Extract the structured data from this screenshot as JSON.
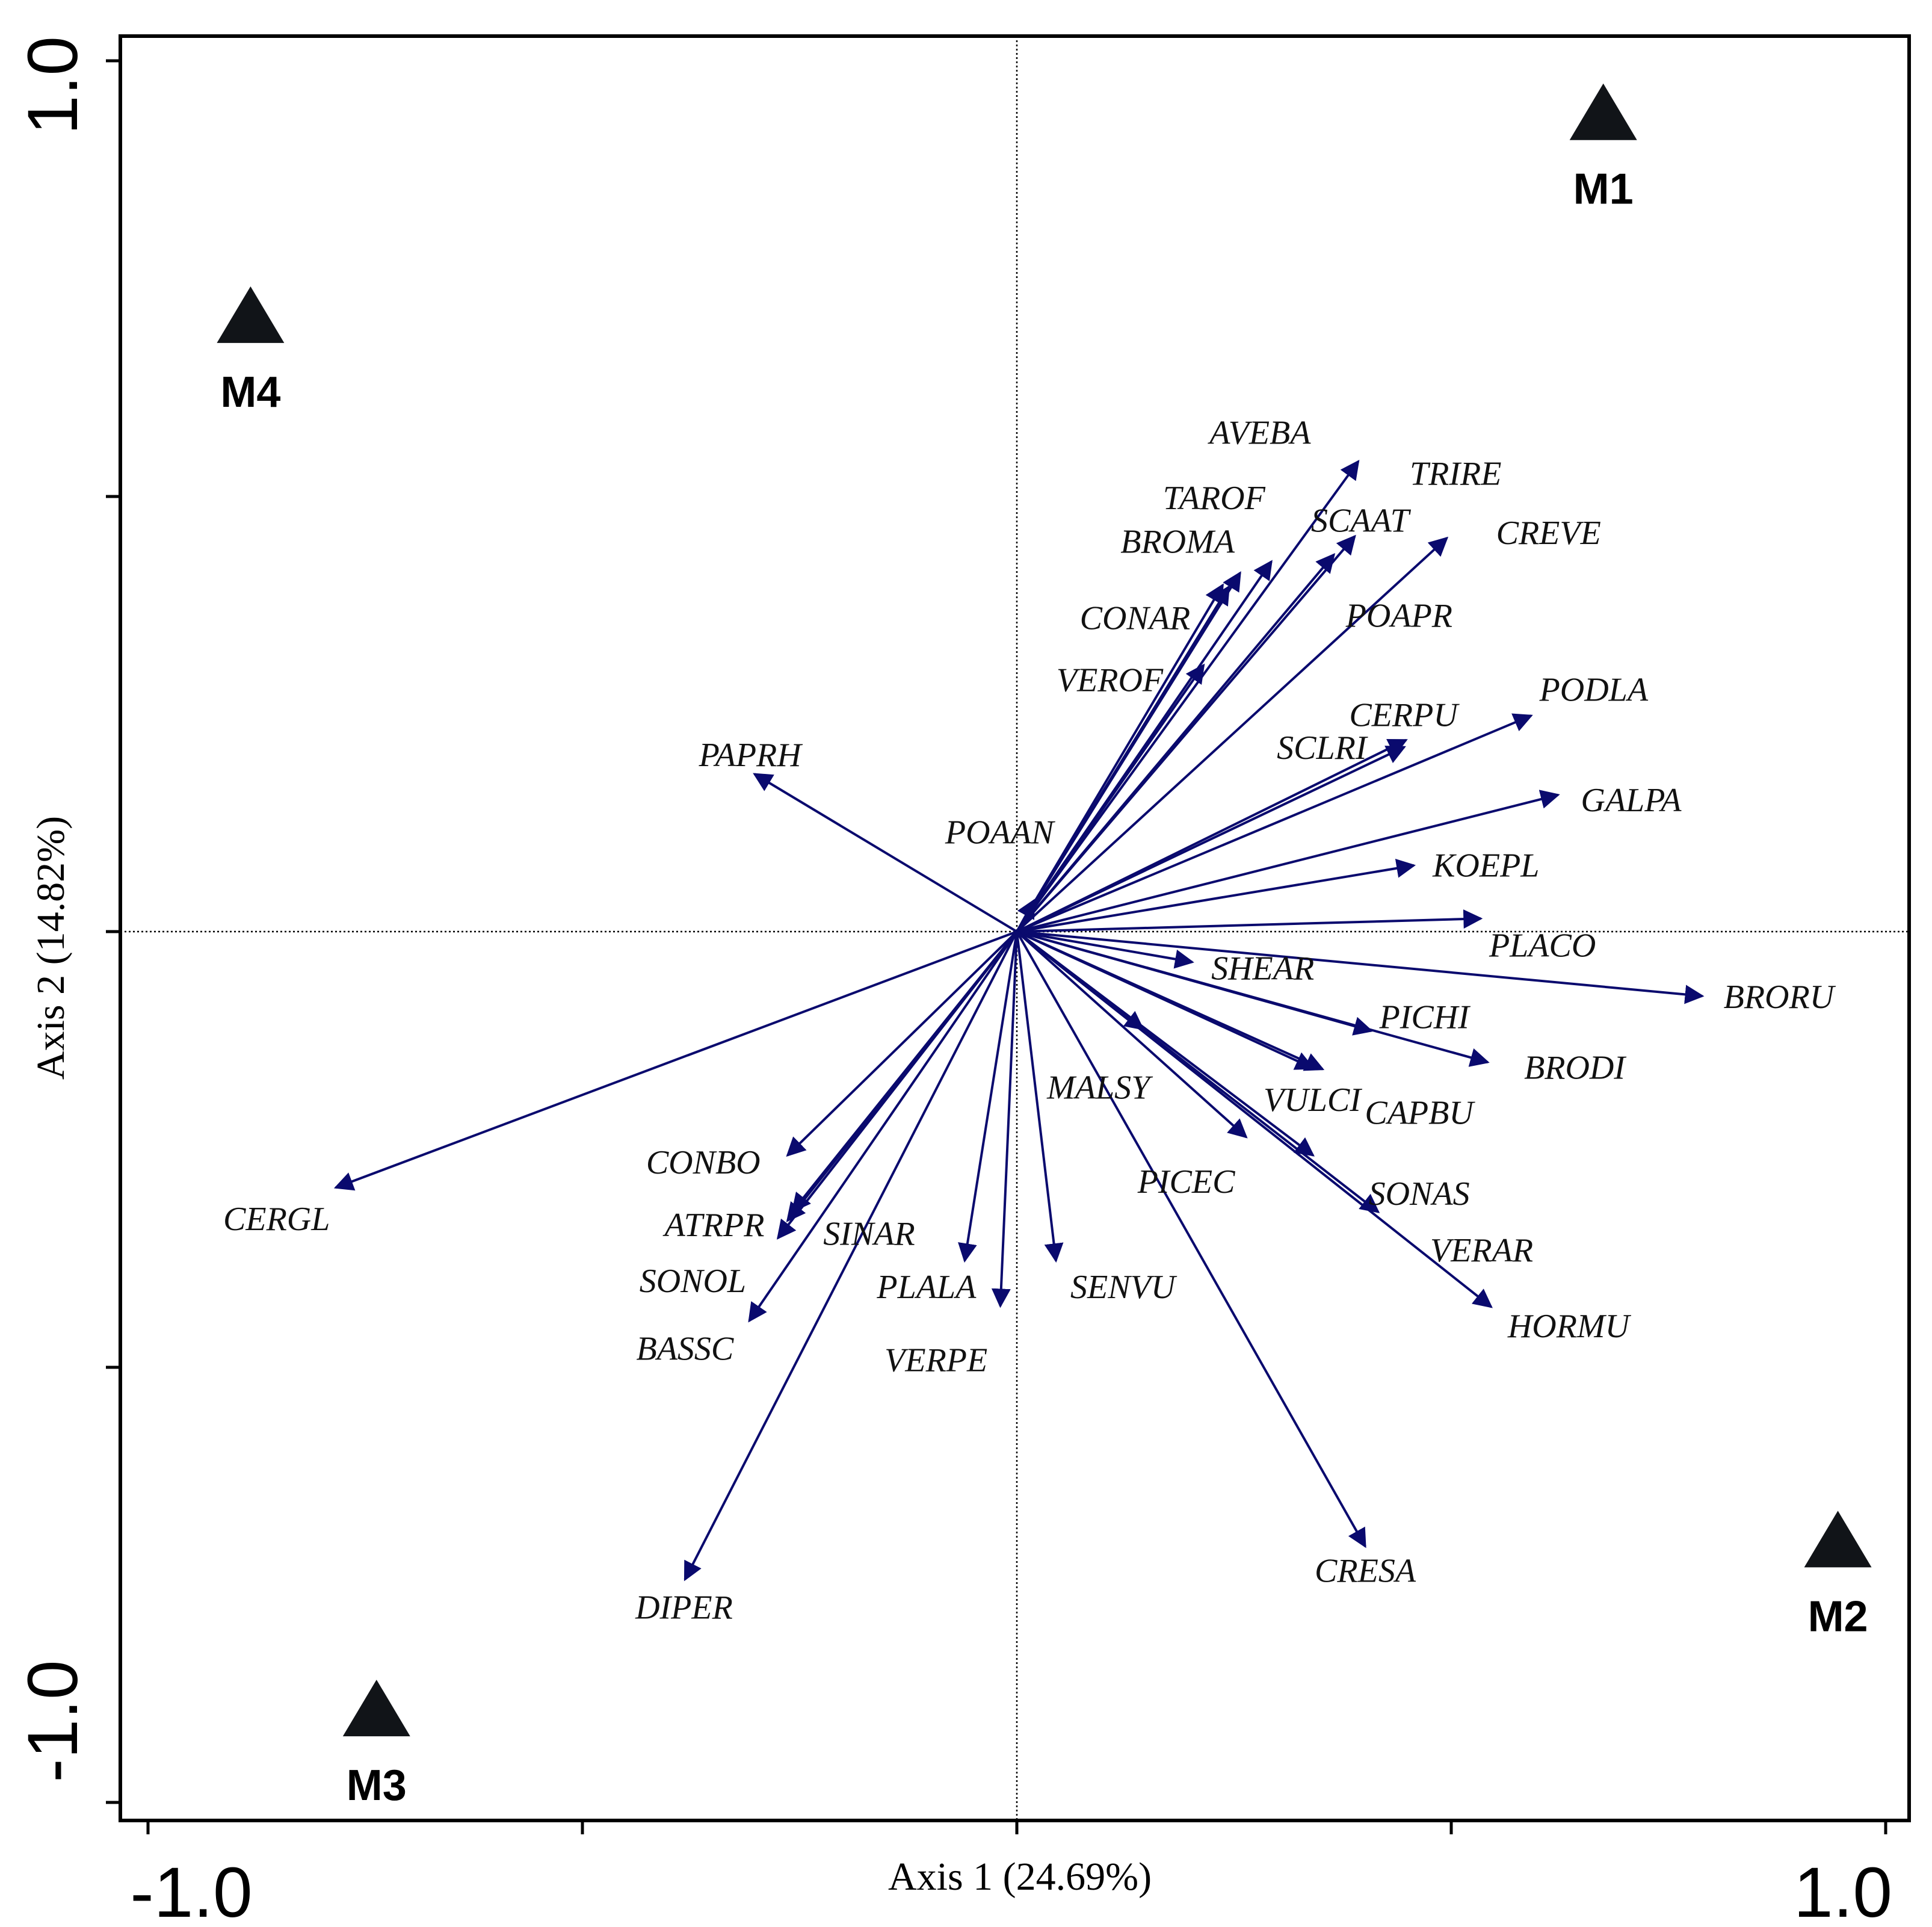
{
  "chart_data": {
    "type": "biplot",
    "xlabel": "Axis 1 (24.69%)",
    "ylabel": "Axis 2 (14.82%)",
    "xlim": [
      -1.0,
      1.0
    ],
    "ylim": [
      -1.0,
      1.0
    ],
    "x_tick_labels": [
      "-1.0",
      "1.0"
    ],
    "y_tick_labels": [
      "1.0",
      "-1.0"
    ],
    "arrow_color": "#0a0a6e",
    "marker_color": "#111418",
    "sites": [
      {
        "name": "M1",
        "x": 0.675,
        "y": 0.938
      },
      {
        "name": "M2",
        "x": 0.945,
        "y": -0.701
      },
      {
        "name": "M3",
        "x": -0.737,
        "y": -0.895
      },
      {
        "name": "M4",
        "x": -0.882,
        "y": 0.705
      }
    ],
    "species": [
      {
        "name": "AVEBA",
        "x": 0.393,
        "y": 0.54,
        "lx": 0.28,
        "ly": 0.574
      },
      {
        "name": "TRIRE",
        "x": 0.389,
        "y": 0.454,
        "lx": 0.505,
        "ly": 0.527
      },
      {
        "name": "TAROF",
        "x": 0.257,
        "y": 0.412,
        "lx": 0.227,
        "ly": 0.499
      },
      {
        "name": "SCAAT",
        "x": 0.293,
        "y": 0.425,
        "lx": 0.395,
        "ly": 0.473
      },
      {
        "name": "BROMA",
        "x": 0.237,
        "y": 0.398,
        "lx": 0.185,
        "ly": 0.449
      },
      {
        "name": "CREVE",
        "x": 0.495,
        "y": 0.452,
        "lx": 0.612,
        "ly": 0.459
      },
      {
        "name": "CONAR",
        "x": 0.244,
        "y": 0.396,
        "lx": 0.136,
        "ly": 0.361
      },
      {
        "name": "POAPR",
        "x": 0.365,
        "y": 0.433,
        "lx": 0.44,
        "ly": 0.364
      },
      {
        "name": "VEROF",
        "x": 0.215,
        "y": 0.306,
        "lx": 0.107,
        "ly": 0.29
      },
      {
        "name": "PODLA",
        "x": 0.592,
        "y": 0.248,
        "lx": 0.664,
        "ly": 0.279
      },
      {
        "name": "CERPU",
        "x": 0.448,
        "y": 0.22,
        "lx": 0.445,
        "ly": 0.25
      },
      {
        "name": "SCLRI",
        "x": 0.446,
        "y": 0.212,
        "lx": 0.351,
        "ly": 0.212
      },
      {
        "name": "PAPRH",
        "x": -0.302,
        "y": 0.181,
        "lx": -0.307,
        "ly": 0.204
      },
      {
        "name": "GALPA",
        "x": 0.623,
        "y": 0.157,
        "lx": 0.707,
        "ly": 0.152
      },
      {
        "name": "POAAN",
        "x": 0.02,
        "y": 0.036,
        "lx": -0.02,
        "ly": 0.115
      },
      {
        "name": "KOEPL",
        "x": 0.457,
        "y": 0.076,
        "lx": 0.54,
        "ly": 0.077
      },
      {
        "name": "PLACO",
        "x": 0.534,
        "y": 0.015,
        "lx": 0.605,
        "ly": -0.015
      },
      {
        "name": "SHEAR",
        "x": 0.202,
        "y": -0.035,
        "lx": 0.283,
        "ly": -0.041
      },
      {
        "name": "BRORU",
        "x": 0.789,
        "y": -0.074,
        "lx": 0.877,
        "ly": -0.074
      },
      {
        "name": "PICHI",
        "x": 0.408,
        "y": -0.114,
        "lx": 0.469,
        "ly": -0.097
      },
      {
        "name": "BRODI",
        "x": 0.542,
        "y": -0.15,
        "lx": 0.642,
        "ly": -0.155
      },
      {
        "name": "MALSY",
        "x": 0.145,
        "y": -0.112,
        "lx": 0.094,
        "ly": -0.178
      },
      {
        "name": "VULCI",
        "x": 0.352,
        "y": -0.158,
        "lx": 0.34,
        "ly": -0.192
      },
      {
        "name": "CAPBU",
        "x": 0.341,
        "y": -0.157,
        "lx": 0.463,
        "ly": -0.207
      },
      {
        "name": "CONBO",
        "x": -0.264,
        "y": -0.257,
        "lx": -0.361,
        "ly": -0.264
      },
      {
        "name": "PICEC",
        "x": 0.264,
        "y": -0.236,
        "lx": 0.195,
        "ly": -0.286
      },
      {
        "name": "CERGL",
        "x": -0.784,
        "y": -0.294,
        "lx": -0.852,
        "ly": -0.329
      },
      {
        "name": "SONAS",
        "x": 0.341,
        "y": -0.257,
        "lx": 0.463,
        "ly": -0.3
      },
      {
        "name": "ATRPR",
        "x": -0.258,
        "y": -0.321,
        "lx": -0.348,
        "ly": -0.336
      },
      {
        "name": "SINAR",
        "x": -0.264,
        "y": -0.332,
        "lx": -0.17,
        "ly": -0.346
      },
      {
        "name": "VERAR",
        "x": 0.416,
        "y": -0.322,
        "lx": 0.535,
        "ly": -0.365
      },
      {
        "name": "PLALA",
        "x": -0.06,
        "y": -0.378,
        "lx": -0.104,
        "ly": -0.407
      },
      {
        "name": "SENVU",
        "x": 0.045,
        "y": -0.378,
        "lx": 0.122,
        "ly": -0.407
      },
      {
        "name": "SONOL",
        "x": -0.275,
        "y": -0.352,
        "lx": -0.373,
        "ly": -0.4
      },
      {
        "name": "VERPE",
        "x": -0.019,
        "y": -0.43,
        "lx": -0.093,
        "ly": -0.491
      },
      {
        "name": "HORMU",
        "x": 0.546,
        "y": -0.431,
        "lx": 0.635,
        "ly": -0.452
      },
      {
        "name": "BASSC",
        "x": -0.308,
        "y": -0.447,
        "lx": -0.382,
        "ly": -0.478
      },
      {
        "name": "CRESA",
        "x": 0.401,
        "y": -0.706,
        "lx": 0.401,
        "ly": -0.733
      },
      {
        "name": "DIPER",
        "x": -0.382,
        "y": -0.744,
        "lx": -0.383,
        "ly": -0.775
      }
    ]
  }
}
